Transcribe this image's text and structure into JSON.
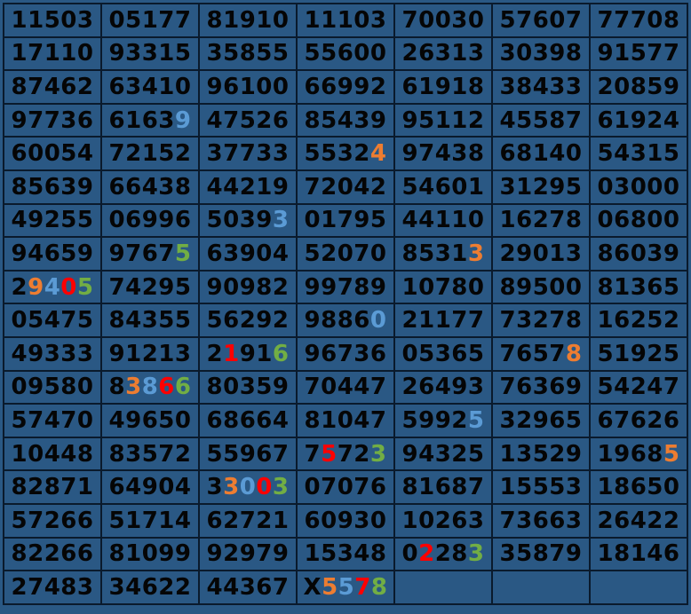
{
  "colors": {
    "background": "#2a5884",
    "grid_line": "#0a1a2c",
    "digit_default": "#050505",
    "highlight_orange": "#ed7d31",
    "highlight_blue": "#5b9bd5",
    "highlight_red": "#ff0000",
    "highlight_green": "#72ae44"
  },
  "grid": {
    "rows": [
      [
        "11503",
        "05177",
        "81910",
        "11103",
        "70030",
        "57607",
        "77708"
      ],
      [
        "17110",
        "93315",
        "35855",
        "55600",
        "26313",
        "30398",
        "91577"
      ],
      [
        "87462",
        "63410",
        "96100",
        "66992",
        "61918",
        "38433",
        "20859"
      ],
      [
        "97736",
        "61639",
        "47526",
        "85439",
        "95112",
        "45587",
        "61924"
      ],
      [
        "60054",
        "72152",
        "37733",
        "55324",
        "97438",
        "68140",
        "54315"
      ],
      [
        "85639",
        "66438",
        "44219",
        "72042",
        "54601",
        "31295",
        "03000"
      ],
      [
        "49255",
        "06996",
        "50393",
        "01795",
        "44110",
        "16278",
        "06800"
      ],
      [
        "94659",
        "97675",
        "63904",
        "52070",
        "85313",
        "29013",
        "86039"
      ],
      [
        "29405",
        "74295",
        "90982",
        "99789",
        "10780",
        "89500",
        "81365"
      ],
      [
        "05475",
        "84355",
        "56292",
        "98860",
        "21177",
        "73278",
        "16252"
      ],
      [
        "49333",
        "91213",
        "21916",
        "96736",
        "05365",
        "76578",
        "51925"
      ],
      [
        "09580",
        "83866",
        "80359",
        "70447",
        "26493",
        "76369",
        "54247"
      ],
      [
        "57470",
        "49650",
        "68664",
        "81047",
        "59925",
        "32965",
        "67626"
      ],
      [
        "10448",
        "83572",
        "55967",
        "75723",
        "94325",
        "13529",
        "19685"
      ],
      [
        "82871",
        "64904",
        "33003",
        "07076",
        "81687",
        "15553",
        "18650"
      ],
      [
        "57266",
        "51714",
        "62721",
        "60930",
        "10263",
        "73663",
        "26422"
      ],
      [
        "82266",
        "81099",
        "92979",
        "15348",
        "02283",
        "35879",
        "18146"
      ],
      [
        "27483",
        "34622",
        "44367",
        "X5578",
        "",
        "",
        ""
      ]
    ],
    "digit_color_overrides": {
      "3,1": "kkkkb",
      "4,3": "kkkko",
      "6,2": "kkkkb",
      "7,1": "kkkkg",
      "7,4": "kkkko",
      "8,0": "kobrg",
      "9,3": "kkkkb",
      "10,2": "krkkg",
      "10,5": "kkkko",
      "11,1": "kobrg",
      "12,4": "kkkkb",
      "13,3": "krkkg",
      "13,6": "kkkko",
      "14,2": "kobrg",
      "16,4": "krkkg",
      "17,3": "kobrg"
    },
    "palette_codes": {
      "k": "digit_default",
      "o": "highlight_orange",
      "b": "highlight_blue",
      "r": "highlight_red",
      "g": "highlight_green"
    }
  }
}
